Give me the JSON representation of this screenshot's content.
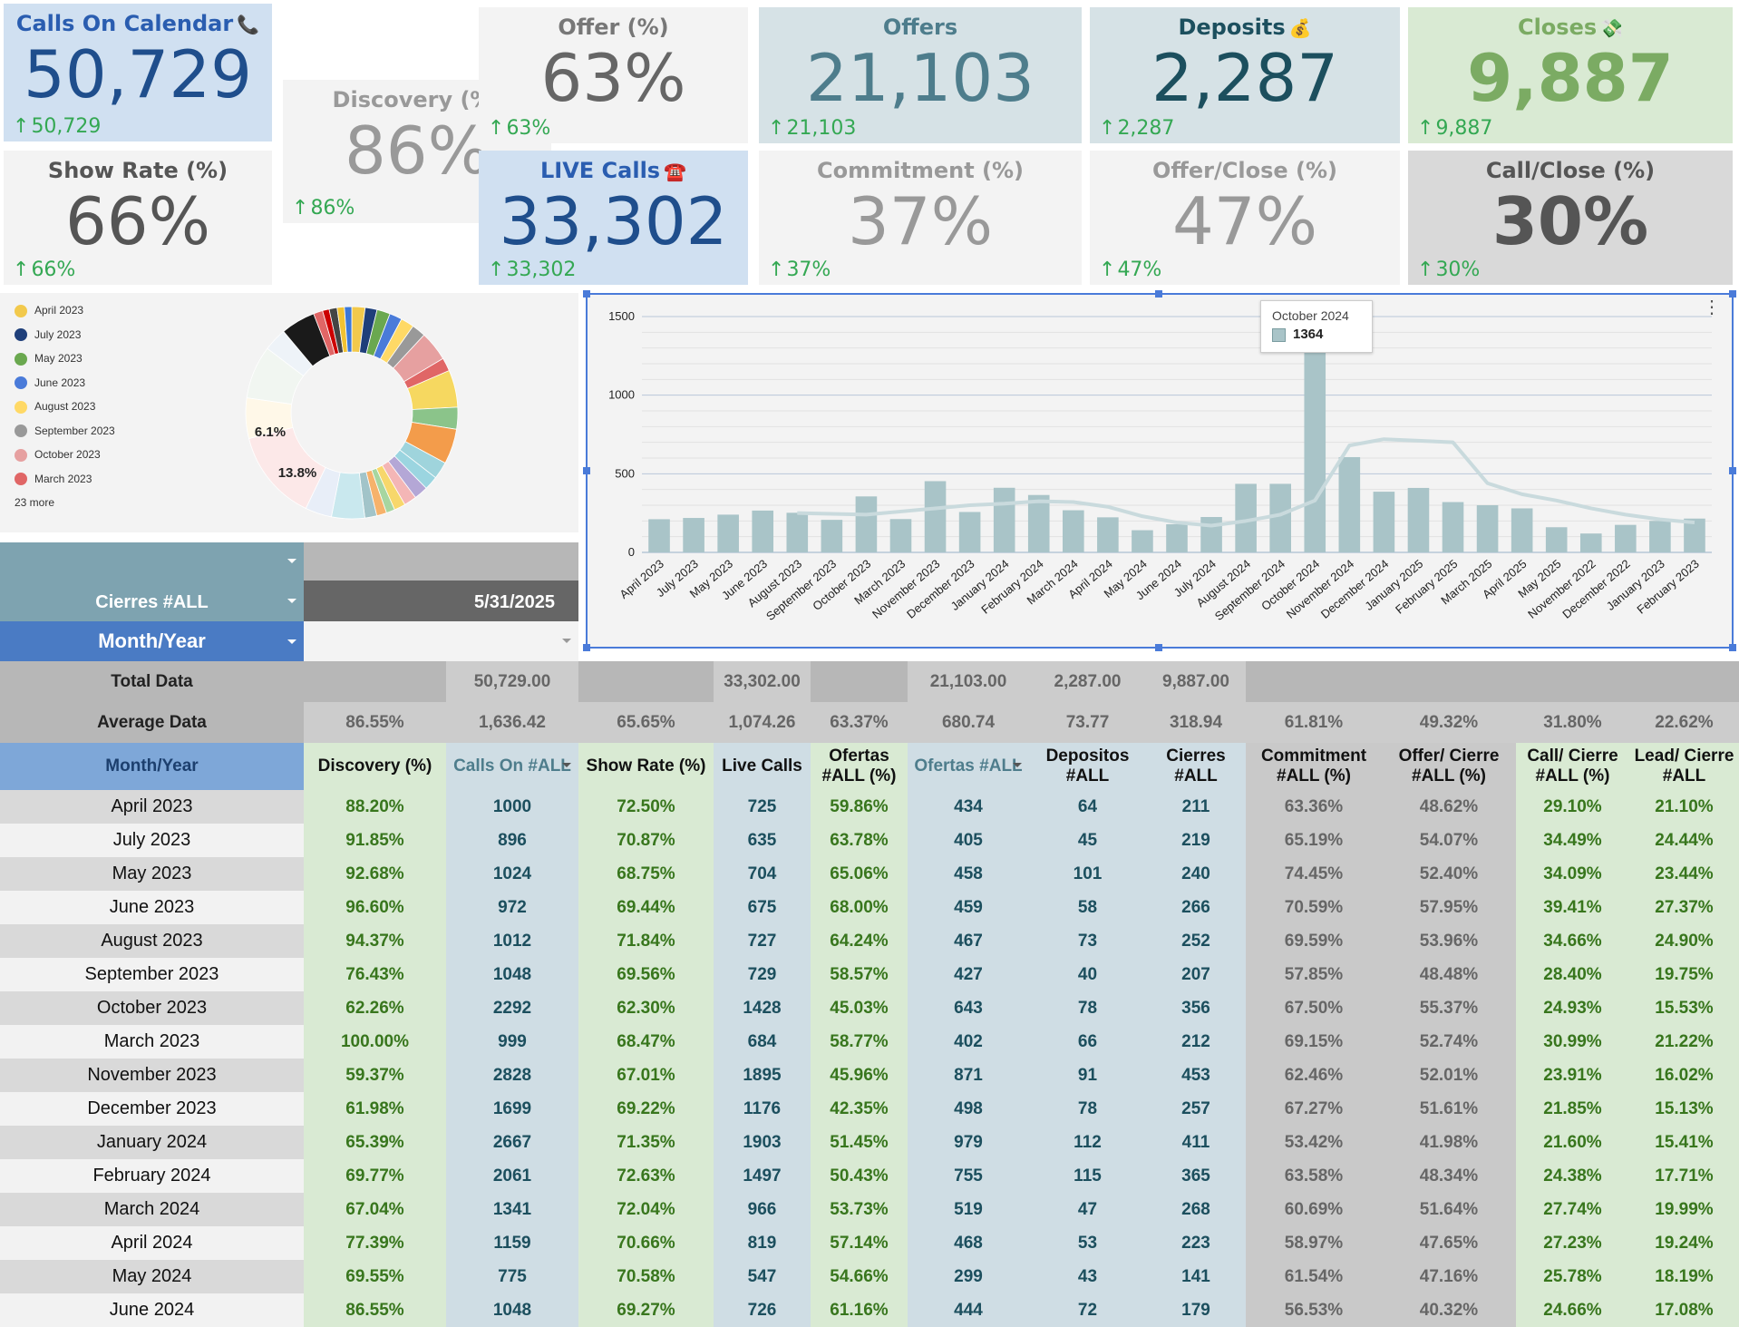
{
  "cards": [
    {
      "id": "calls-on-calendar",
      "title": "Calls On Calendar",
      "emoji": "📞",
      "value": "50,729",
      "change": "50,729",
      "bg": "#d0e0f1",
      "title_color": "#2a5db0",
      "value_color": "#1f4e8c"
    },
    {
      "id": "discovery",
      "title": "Discovery (%)",
      "emoji": "",
      "value": "86%",
      "change": "86%",
      "bg": "#f3f3f3",
      "title_color": "#999999",
      "value_color": "#999999"
    },
    {
      "id": "offer",
      "title": "Offer (%)",
      "emoji": "",
      "value": "63%",
      "change": "63%",
      "bg": "#f3f3f3",
      "title_color": "#777777",
      "value_color": "#666666"
    },
    {
      "id": "offers",
      "title": "Offers",
      "emoji": "",
      "value": "21,103",
      "change": "21,103",
      "bg": "#d6e2e6",
      "title_color": "#4e7d8c",
      "value_color": "#4e7d8c"
    },
    {
      "id": "deposits",
      "title": "Deposits",
      "emoji": "💰",
      "value": "2,287",
      "change": "2,287",
      "bg": "#d6e2e6",
      "title_color": "#1c4f5e",
      "value_color": "#1c4f5e"
    },
    {
      "id": "closes",
      "title": "Closes",
      "emoji": "💸",
      "value": "9,887",
      "change": "9,887",
      "bg": "#d9ead3",
      "title_color": "#7bab63",
      "value_color": "#7bab63"
    },
    {
      "id": "show-rate",
      "title": "Show Rate (%)",
      "emoji": "",
      "value": "66%",
      "change": "66%",
      "bg": "#f3f3f3",
      "title_color": "#555555",
      "value_color": "#555555"
    },
    {
      "id": "live-calls",
      "title": "LIVE Calls",
      "emoji": "☎️",
      "value": "33,302",
      "change": "33,302",
      "bg": "#d0e0f1",
      "title_color": "#2a5db0",
      "value_color": "#1f4e8c"
    },
    {
      "id": "commitment",
      "title": "Commitment (%)",
      "emoji": "",
      "value": "37%",
      "change": "37%",
      "bg": "#f3f3f3",
      "title_color": "#999999",
      "value_color": "#999999"
    },
    {
      "id": "offer-close",
      "title": "Offer/Close (%)",
      "emoji": "",
      "value": "47%",
      "change": "47%",
      "bg": "#f3f3f3",
      "title_color": "#999999",
      "value_color": "#999999"
    },
    {
      "id": "call-close",
      "title": "Call/Close (%)",
      "emoji": "",
      "value": "30%",
      "change": "30%",
      "bg": "#d9d9d9",
      "title_color": "#555555",
      "value_color": "#555555"
    }
  ],
  "pie": {
    "legend": [
      {
        "label": "April 2023",
        "color": "#f2c94c"
      },
      {
        "label": "July 2023",
        "color": "#1f3f7a"
      },
      {
        "label": "May 2023",
        "color": "#6aa84f"
      },
      {
        "label": "June 2023",
        "color": "#4a7bd9"
      },
      {
        "label": "August 2023",
        "color": "#ffd966"
      },
      {
        "label": "September 2023",
        "color": "#999999"
      },
      {
        "label": "October 2023",
        "color": "#e6a0a0"
      },
      {
        "label": "March 2023",
        "color": "#e06666"
      }
    ],
    "more_label": "23 more",
    "slices": [
      {
        "value": 2.0,
        "color": "#f2c94c"
      },
      {
        "value": 1.8,
        "color": "#1f3f7a"
      },
      {
        "value": 2.0,
        "color": "#6aa84f"
      },
      {
        "value": 1.9,
        "color": "#4a7bd9"
      },
      {
        "value": 2.0,
        "color": "#ffd966"
      },
      {
        "value": 2.1,
        "color": "#999999"
      },
      {
        "value": 4.5,
        "color": "#e6a0a0"
      },
      {
        "value": 2.0,
        "color": "#e06666"
      },
      {
        "value": 5.6,
        "color": "#f6d860"
      },
      {
        "value": 3.3,
        "color": "#8bc48a"
      },
      {
        "value": 5.3,
        "color": "#f39c4b"
      },
      {
        "value": 2.6,
        "color": "#9fd4dc"
      },
      {
        "value": 2.1,
        "color": "#9bd5e0"
      },
      {
        "value": 2.1,
        "color": "#b4a7d6"
      },
      {
        "value": 1.9,
        "color": "#f4b6b6"
      },
      {
        "value": 1.7,
        "color": "#f7d76b"
      },
      {
        "value": 1.3,
        "color": "#a7d6a0"
      },
      {
        "value": 1.5,
        "color": "#f6b26b"
      },
      {
        "value": 1.8,
        "color": "#a2c4c9"
      },
      {
        "value": 5.0,
        "color": "#c9e8ee"
      },
      {
        "value": 4.0,
        "color": "#e8eef8"
      },
      {
        "value": 13.8,
        "color": "#fce8e8"
      },
      {
        "value": 6.1,
        "color": "#fff8e8"
      },
      {
        "value": 8.0,
        "color": "#f1f6f1"
      },
      {
        "value": 3.5,
        "color": "#eef3f8"
      },
      {
        "value": 5.2,
        "color": "#1a1a1a"
      },
      {
        "value": 1.4,
        "color": "#e06666"
      },
      {
        "value": 1.0,
        "color": "#cc0000"
      },
      {
        "value": 1.2,
        "color": "#444444"
      },
      {
        "value": 1.1,
        "color": "#f1c232"
      },
      {
        "value": 1.1,
        "color": "#3c78d8"
      }
    ],
    "labels": [
      {
        "text": "6.1%"
      },
      {
        "text": "13.8%"
      }
    ]
  },
  "chart_data": {
    "type": "bar",
    "categories": [
      "April 2023",
      "July 2023",
      "May 2023",
      "June 2023",
      "August 2023",
      "September 2023",
      "October 2023",
      "March 2023",
      "November 2023",
      "December 2023",
      "January 2024",
      "February 2024",
      "March 2024",
      "April 2024",
      "May 2024",
      "June 2024",
      "July 2024",
      "August 2024",
      "September 2024",
      "October 2024",
      "November 2024",
      "December 2024",
      "January 2025",
      "February 2025",
      "March 2025",
      "April 2025",
      "May 2025",
      "November 2022",
      "December 2022",
      "January 2023",
      "February 2023"
    ],
    "values": [
      211,
      219,
      240,
      266,
      252,
      207,
      356,
      212,
      453,
      257,
      411,
      365,
      268,
      223,
      141,
      179,
      225,
      436,
      436,
      1364,
      606,
      386,
      410,
      320,
      300,
      280,
      160,
      120,
      175,
      200,
      215
    ],
    "trend": [
      null,
      null,
      null,
      null,
      null,
      null,
      null,
      null,
      null,
      null,
      null,
      null,
      null,
      null,
      null,
      null,
      null,
      null,
      null,
      null,
      null,
      null,
      null,
      null,
      null,
      null,
      null,
      null,
      null,
      null,
      null
    ],
    "trend_values": [
      null,
      null,
      null,
      null,
      250,
      245,
      240,
      260,
      280,
      300,
      310,
      325,
      320,
      290,
      230,
      190,
      170,
      200,
      240,
      330,
      680,
      720,
      710,
      700,
      440,
      370,
      330,
      280,
      240,
      210,
      190
    ],
    "ylim": [
      0,
      1500
    ],
    "yticks": [
      0,
      500,
      1000,
      1500
    ],
    "bar_color": "#a9c4c8",
    "trend_color": "#c9dadd",
    "tooltip": {
      "title": "October 2024",
      "value": "1364"
    }
  },
  "filters": {
    "cierres_label": "Cierres #ALL",
    "date_value": "5/31/2025",
    "month_year_label": "Month/Year"
  },
  "table": {
    "total_label": "Total Data",
    "average_label": "Average Data",
    "total": [
      "",
      "50,729.00",
      "",
      "33,302.00",
      "",
      "21,103.00",
      "2,287.00",
      "9,887.00",
      "",
      "",
      "",
      ""
    ],
    "average": [
      "86.55%",
      "1,636.42",
      "65.65%",
      "1,074.26",
      "63.37%",
      "680.74",
      "73.77",
      "318.94",
      "61.81%",
      "49.32%",
      "31.80%",
      "22.62%"
    ],
    "headers": [
      "Month/Year",
      "Discovery (%)",
      "Calls On #ALL",
      "Show Rate (%)",
      "Live Calls",
      "Ofertas #ALL (%)",
      "Ofertas #ALL",
      "Depositos #ALL",
      "Cierres #ALL",
      "Commitment #ALL (%)",
      "Offer/ Cierre #ALL (%)",
      "Call/ Cierre #ALL (%)",
      "Lead/ Cierre #ALL"
    ],
    "rows": [
      [
        "April 2023",
        "88.20%",
        "1000",
        "72.50%",
        "725",
        "59.86%",
        "434",
        "64",
        "211",
        "63.36%",
        "48.62%",
        "29.10%",
        "21.10%"
      ],
      [
        "July 2023",
        "91.85%",
        "896",
        "70.87%",
        "635",
        "63.78%",
        "405",
        "45",
        "219",
        "65.19%",
        "54.07%",
        "34.49%",
        "24.44%"
      ],
      [
        "May 2023",
        "92.68%",
        "1024",
        "68.75%",
        "704",
        "65.06%",
        "458",
        "101",
        "240",
        "74.45%",
        "52.40%",
        "34.09%",
        "23.44%"
      ],
      [
        "June 2023",
        "96.60%",
        "972",
        "69.44%",
        "675",
        "68.00%",
        "459",
        "58",
        "266",
        "70.59%",
        "57.95%",
        "39.41%",
        "27.37%"
      ],
      [
        "August 2023",
        "94.37%",
        "1012",
        "71.84%",
        "727",
        "64.24%",
        "467",
        "73",
        "252",
        "69.59%",
        "53.96%",
        "34.66%",
        "24.90%"
      ],
      [
        "September 2023",
        "76.43%",
        "1048",
        "69.56%",
        "729",
        "58.57%",
        "427",
        "40",
        "207",
        "57.85%",
        "48.48%",
        "28.40%",
        "19.75%"
      ],
      [
        "October 2023",
        "62.26%",
        "2292",
        "62.30%",
        "1428",
        "45.03%",
        "643",
        "78",
        "356",
        "67.50%",
        "55.37%",
        "24.93%",
        "15.53%"
      ],
      [
        "March 2023",
        "100.00%",
        "999",
        "68.47%",
        "684",
        "58.77%",
        "402",
        "66",
        "212",
        "69.15%",
        "52.74%",
        "30.99%",
        "21.22%"
      ],
      [
        "November 2023",
        "59.37%",
        "2828",
        "67.01%",
        "1895",
        "45.96%",
        "871",
        "91",
        "453",
        "62.46%",
        "52.01%",
        "23.91%",
        "16.02%"
      ],
      [
        "December 2023",
        "61.98%",
        "1699",
        "69.22%",
        "1176",
        "42.35%",
        "498",
        "78",
        "257",
        "67.27%",
        "51.61%",
        "21.85%",
        "15.13%"
      ],
      [
        "January 2024",
        "65.39%",
        "2667",
        "71.35%",
        "1903",
        "51.45%",
        "979",
        "112",
        "411",
        "53.42%",
        "41.98%",
        "21.60%",
        "15.41%"
      ],
      [
        "February 2024",
        "69.77%",
        "2061",
        "72.63%",
        "1497",
        "50.43%",
        "755",
        "115",
        "365",
        "63.58%",
        "48.34%",
        "24.38%",
        "17.71%"
      ],
      [
        "March 2024",
        "67.04%",
        "1341",
        "72.04%",
        "966",
        "53.73%",
        "519",
        "47",
        "268",
        "60.69%",
        "51.64%",
        "27.74%",
        "19.99%"
      ],
      [
        "April 2024",
        "77.39%",
        "1159",
        "70.66%",
        "819",
        "57.14%",
        "468",
        "53",
        "223",
        "58.97%",
        "47.65%",
        "27.23%",
        "19.24%"
      ],
      [
        "May 2024",
        "69.55%",
        "775",
        "70.58%",
        "547",
        "54.66%",
        "299",
        "43",
        "141",
        "61.54%",
        "47.16%",
        "25.78%",
        "18.19%"
      ],
      [
        "June 2024",
        "86.55%",
        "1048",
        "69.27%",
        "726",
        "61.16%",
        "444",
        "72",
        "179",
        "56.53%",
        "40.32%",
        "24.66%",
        "17.08%"
      ]
    ]
  }
}
